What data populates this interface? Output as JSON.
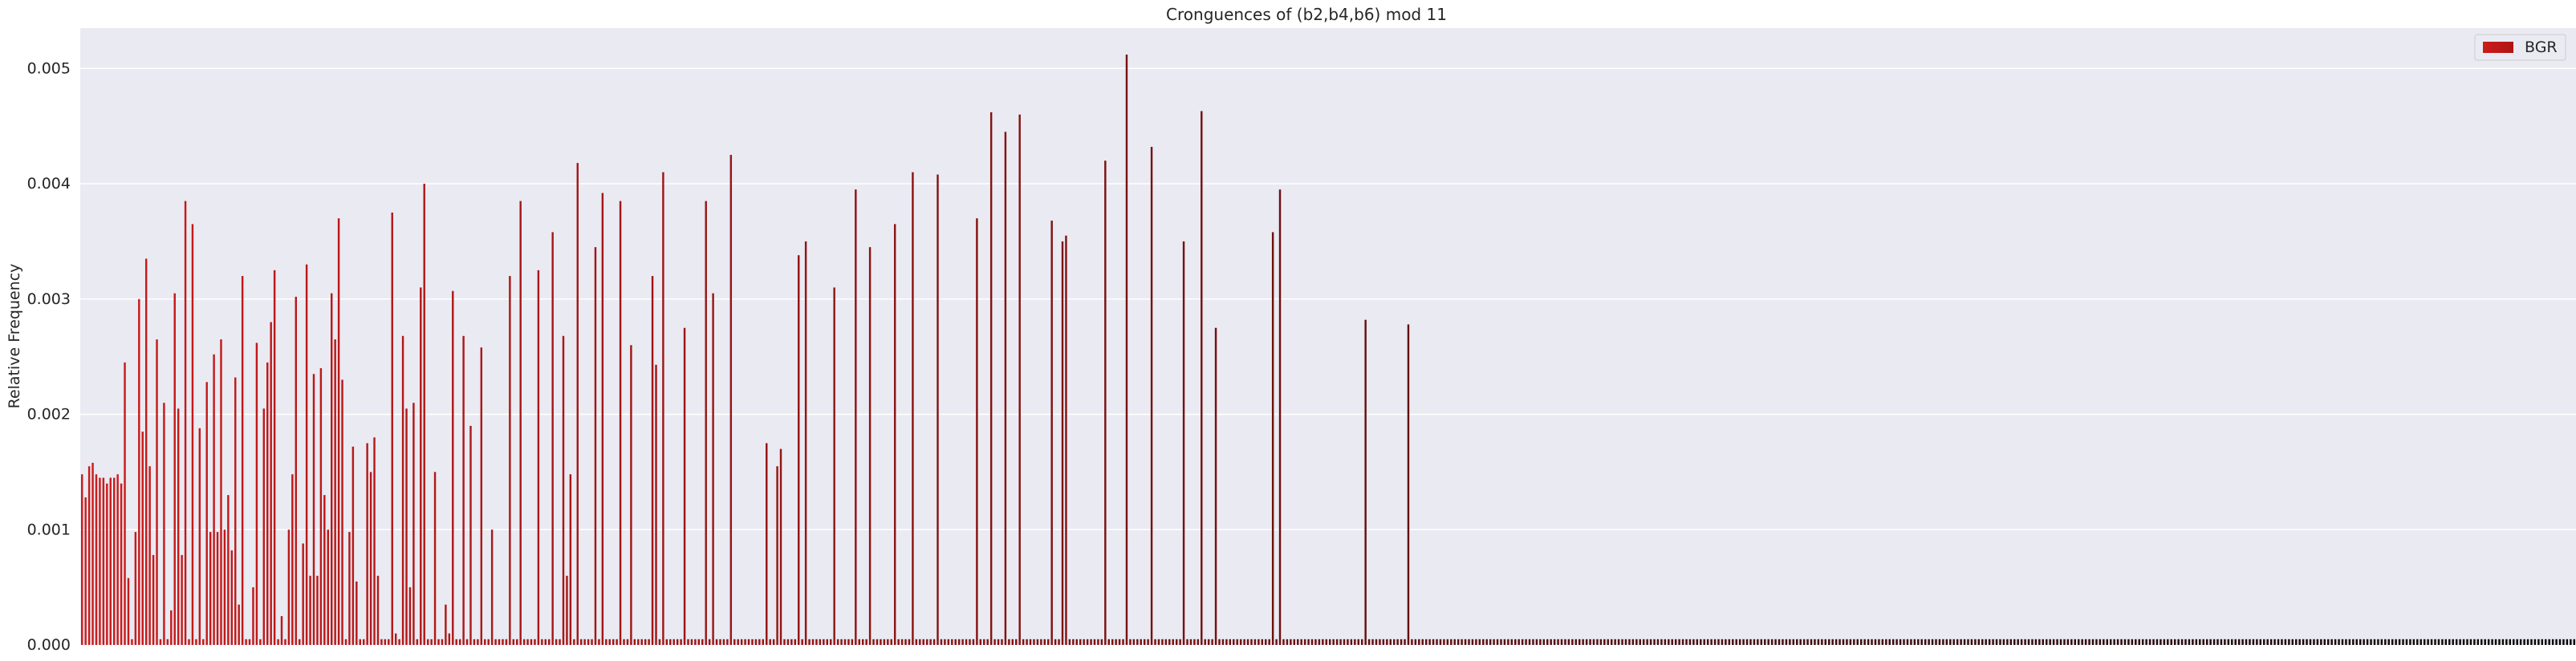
{
  "chart_data": {
    "type": "bar",
    "title": "Cronguences of (b2,b4,b6) mod 11",
    "xlabel": "",
    "ylabel": "Relative Frequency",
    "ylim": [
      0,
      0.00535
    ],
    "yticks": [
      "0.000",
      "0.001",
      "0.002",
      "0.003",
      "0.004",
      "0.005"
    ],
    "grid": true,
    "legend": {
      "placement": "top-right",
      "entries": [
        "BGR"
      ]
    },
    "colors": {
      "start": "#cc1b1b",
      "end": "#060606",
      "background": "#eaeaf2",
      "grid": "#ffffff"
    },
    "series": [
      {
        "name": "BGR",
        "values": [
          0.00148,
          0.00128,
          0.00155,
          0.00158,
          0.00148,
          0.00145,
          0.00145,
          0.0014,
          0.00145,
          0.00145,
          0.00148,
          0.0014,
          0.00245,
          0.00058,
          5e-05,
          0.00098,
          0.003,
          0.00185,
          0.00335,
          0.00155,
          0.00078,
          0.00265,
          5e-05,
          0.0021,
          5e-05,
          0.0003,
          0.00305,
          0.00205,
          0.00078,
          0.00385,
          5e-05,
          0.00365,
          5e-05,
          0.00188,
          5e-05,
          0.00228,
          0.00098,
          0.00252,
          0.00098,
          0.00265,
          0.001,
          0.0013,
          0.00082,
          0.00232,
          0.00035,
          0.0032,
          5e-05,
          5e-05,
          0.0005,
          0.00262,
          5e-05,
          0.00205,
          0.00245,
          0.0028,
          0.00325,
          5e-05,
          0.00025,
          5e-05,
          0.001,
          0.00148,
          0.00302,
          5e-05,
          0.00088,
          0.0033,
          0.0006,
          0.00235,
          0.0006,
          0.0024,
          0.0013,
          0.001,
          0.00305,
          0.00265,
          0.0037,
          0.0023,
          5e-05,
          0.00098,
          0.00172,
          0.00055,
          5e-05,
          5e-05,
          0.00175,
          0.0015,
          0.0018,
          0.0006,
          5e-05,
          5e-05,
          5e-05,
          0.00375,
          0.0001,
          5e-05,
          0.00268,
          0.00205,
          0.0005,
          0.0021,
          5e-05,
          0.0031,
          0.004,
          5e-05,
          5e-05,
          0.0015,
          5e-05,
          5e-05,
          0.00035,
          0.0001,
          0.00307,
          5e-05,
          5e-05,
          0.00268,
          5e-05,
          0.0019,
          5e-05,
          5e-05,
          0.00258,
          5e-05,
          5e-05,
          0.001,
          5e-05,
          5e-05,
          5e-05,
          5e-05,
          0.0032,
          5e-05,
          5e-05,
          0.00385,
          5e-05,
          5e-05,
          5e-05,
          5e-05,
          0.00325,
          5e-05,
          5e-05,
          5e-05,
          0.00358,
          5e-05,
          5e-05,
          0.00268,
          0.0006,
          0.00148,
          5e-05,
          0.00418,
          5e-05,
          5e-05,
          5e-05,
          5e-05,
          0.00345,
          5e-05,
          0.00392,
          5e-05,
          5e-05,
          5e-05,
          5e-05,
          0.00385,
          5e-05,
          5e-05,
          0.0026,
          5e-05,
          5e-05,
          5e-05,
          5e-05,
          5e-05,
          0.0032,
          0.00243,
          5e-05,
          0.0041,
          5e-05,
          5e-05,
          5e-05,
          5e-05,
          5e-05,
          0.00275,
          5e-05,
          5e-05,
          5e-05,
          5e-05,
          5e-05,
          0.00385,
          5e-05,
          0.00305,
          5e-05,
          5e-05,
          5e-05,
          5e-05,
          0.00425,
          5e-05,
          5e-05,
          5e-05,
          5e-05,
          5e-05,
          5e-05,
          5e-05,
          5e-05,
          5e-05,
          0.00175,
          5e-05,
          5e-05,
          0.00155,
          0.0017,
          5e-05,
          5e-05,
          5e-05,
          5e-05,
          0.00338,
          5e-05,
          0.0035,
          5e-05,
          5e-05,
          5e-05,
          5e-05,
          5e-05,
          5e-05,
          5e-05,
          0.0031,
          5e-05,
          5e-05,
          5e-05,
          5e-05,
          5e-05,
          0.00395,
          5e-05,
          5e-05,
          5e-05,
          0.00345,
          5e-05,
          5e-05,
          5e-05,
          5e-05,
          5e-05,
          5e-05,
          0.00365,
          5e-05,
          5e-05,
          5e-05,
          5e-05,
          0.0041,
          5e-05,
          5e-05,
          5e-05,
          5e-05,
          5e-05,
          5e-05,
          0.00408,
          5e-05,
          5e-05,
          5e-05,
          5e-05,
          5e-05,
          5e-05,
          5e-05,
          5e-05,
          5e-05,
          5e-05,
          0.0037,
          5e-05,
          5e-05,
          5e-05,
          0.00462,
          5e-05,
          5e-05,
          5e-05,
          0.00445,
          5e-05,
          5e-05,
          5e-05,
          0.0046,
          5e-05,
          5e-05,
          5e-05,
          5e-05,
          5e-05,
          5e-05,
          5e-05,
          5e-05,
          0.00368,
          5e-05,
          5e-05,
          0.0035,
          0.00355,
          5e-05,
          5e-05,
          5e-05,
          5e-05,
          5e-05,
          5e-05,
          5e-05,
          5e-05,
          5e-05,
          5e-05,
          0.0042,
          5e-05,
          5e-05,
          5e-05,
          5e-05,
          5e-05,
          0.00512,
          5e-05,
          5e-05,
          5e-05,
          5e-05,
          5e-05,
          5e-05,
          0.00432,
          5e-05,
          5e-05,
          5e-05,
          5e-05,
          5e-05,
          5e-05,
          5e-05,
          5e-05,
          0.0035,
          5e-05,
          5e-05,
          5e-05,
          5e-05,
          0.00463,
          5e-05,
          5e-05,
          5e-05,
          0.00275,
          5e-05,
          5e-05,
          5e-05,
          5e-05,
          5e-05,
          5e-05,
          5e-05,
          5e-05,
          5e-05,
          5e-05,
          5e-05,
          5e-05,
          5e-05,
          5e-05,
          5e-05,
          0.00358,
          5e-05,
          0.00395,
          5e-05,
          5e-05,
          5e-05,
          5e-05,
          5e-05,
          5e-05,
          5e-05,
          5e-05,
          5e-05,
          5e-05,
          5e-05,
          5e-05,
          5e-05,
          5e-05,
          5e-05,
          5e-05,
          5e-05,
          5e-05,
          5e-05,
          5e-05,
          5e-05,
          5e-05,
          5e-05,
          0.00282,
          5e-05,
          5e-05,
          5e-05,
          5e-05,
          5e-05,
          5e-05,
          5e-05,
          5e-05,
          5e-05,
          5e-05,
          5e-05,
          0.00278,
          5e-05,
          5e-05,
          5e-05,
          5e-05,
          5e-05,
          5e-05,
          5e-05,
          5e-05,
          5e-05,
          5e-05,
          5e-05,
          5e-05,
          5e-05,
          5e-05,
          5e-05,
          5e-05,
          5e-05,
          5e-05,
          5e-05,
          5e-05,
          5e-05,
          5e-05,
          5e-05,
          5e-05,
          5e-05,
          5e-05,
          5e-05,
          5e-05,
          5e-05,
          5e-05,
          5e-05,
          5e-05,
          5e-05,
          5e-05,
          5e-05,
          5e-05,
          5e-05,
          5e-05,
          5e-05,
          5e-05,
          5e-05,
          5e-05,
          5e-05,
          5e-05,
          5e-05,
          5e-05,
          5e-05,
          5e-05,
          5e-05,
          5e-05,
          5e-05,
          5e-05,
          5e-05,
          5e-05,
          5e-05,
          5e-05,
          5e-05,
          5e-05,
          5e-05,
          5e-05,
          5e-05,
          5e-05,
          5e-05,
          5e-05,
          5e-05,
          5e-05,
          5e-05,
          5e-05,
          5e-05,
          5e-05,
          5e-05,
          5e-05,
          5e-05,
          5e-05,
          5e-05,
          5e-05,
          5e-05,
          5e-05,
          5e-05,
          5e-05,
          5e-05,
          5e-05,
          5e-05,
          5e-05,
          5e-05,
          5e-05,
          5e-05,
          5e-05,
          5e-05,
          5e-05,
          5e-05,
          5e-05,
          5e-05,
          5e-05,
          5e-05,
          5e-05,
          5e-05,
          5e-05,
          5e-05,
          5e-05,
          5e-05,
          5e-05,
          5e-05,
          5e-05,
          5e-05,
          5e-05,
          5e-05,
          5e-05,
          5e-05,
          5e-05,
          5e-05,
          5e-05,
          5e-05,
          5e-05,
          5e-05,
          5e-05,
          5e-05,
          5e-05,
          5e-05,
          5e-05,
          5e-05,
          5e-05,
          5e-05,
          5e-05,
          5e-05,
          5e-05,
          5e-05,
          5e-05,
          5e-05,
          5e-05,
          5e-05,
          5e-05,
          5e-05,
          5e-05,
          5e-05,
          5e-05,
          5e-05,
          5e-05,
          5e-05,
          5e-05,
          5e-05,
          5e-05,
          5e-05,
          5e-05,
          5e-05,
          5e-05,
          5e-05,
          5e-05,
          5e-05,
          5e-05,
          5e-05,
          5e-05,
          5e-05,
          5e-05,
          5e-05,
          5e-05,
          5e-05,
          5e-05,
          5e-05,
          5e-05,
          5e-05,
          5e-05,
          5e-05,
          5e-05,
          5e-05,
          5e-05,
          5e-05,
          5e-05,
          5e-05,
          5e-05,
          5e-05,
          5e-05,
          5e-05,
          5e-05,
          5e-05,
          5e-05,
          5e-05,
          5e-05,
          5e-05,
          5e-05,
          5e-05,
          5e-05,
          5e-05,
          5e-05,
          5e-05,
          5e-05,
          5e-05,
          5e-05,
          5e-05,
          5e-05,
          5e-05,
          5e-05,
          5e-05,
          5e-05,
          5e-05,
          5e-05,
          5e-05,
          5e-05,
          5e-05,
          5e-05,
          5e-05,
          5e-05,
          5e-05,
          5e-05,
          5e-05,
          5e-05,
          5e-05,
          5e-05,
          5e-05,
          5e-05,
          5e-05,
          5e-05,
          5e-05,
          5e-05,
          5e-05,
          5e-05,
          5e-05,
          5e-05,
          5e-05,
          5e-05,
          5e-05,
          5e-05,
          5e-05,
          5e-05,
          5e-05,
          5e-05,
          5e-05,
          5e-05,
          5e-05,
          5e-05,
          5e-05,
          5e-05,
          5e-05,
          5e-05,
          5e-05,
          5e-05,
          5e-05,
          5e-05,
          5e-05,
          5e-05,
          5e-05,
          5e-05,
          5e-05,
          5e-05,
          5e-05,
          5e-05,
          5e-05,
          5e-05,
          5e-05,
          5e-05,
          5e-05,
          5e-05,
          5e-05,
          5e-05,
          5e-05,
          5e-05,
          5e-05,
          5e-05,
          5e-05,
          5e-05,
          5e-05,
          5e-05,
          5e-05,
          5e-05,
          5e-05,
          5e-05,
          5e-05,
          5e-05,
          5e-05,
          5e-05,
          5e-05,
          5e-05,
          5e-05,
          5e-05,
          5e-05,
          5e-05,
          5e-05,
          5e-05,
          5e-05,
          5e-05,
          5e-05,
          5e-05,
          5e-05,
          5e-05,
          5e-05,
          5e-05,
          5e-05,
          5e-05,
          5e-05,
          5e-05,
          5e-05,
          5e-05,
          5e-05,
          5e-05,
          5e-05,
          5e-05,
          5e-05,
          5e-05,
          5e-05,
          5e-05,
          5e-05,
          5e-05,
          5e-05,
          5e-05,
          5e-05,
          5e-05,
          5e-05,
          5e-05,
          5e-05,
          5e-05,
          5e-05,
          5e-05,
          5e-05,
          5e-05,
          5e-05,
          5e-05,
          5e-05,
          5e-05,
          5e-05,
          5e-05,
          5e-05,
          5e-05,
          5e-05,
          5e-05,
          5e-05,
          5e-05,
          5e-05
        ]
      }
    ]
  }
}
